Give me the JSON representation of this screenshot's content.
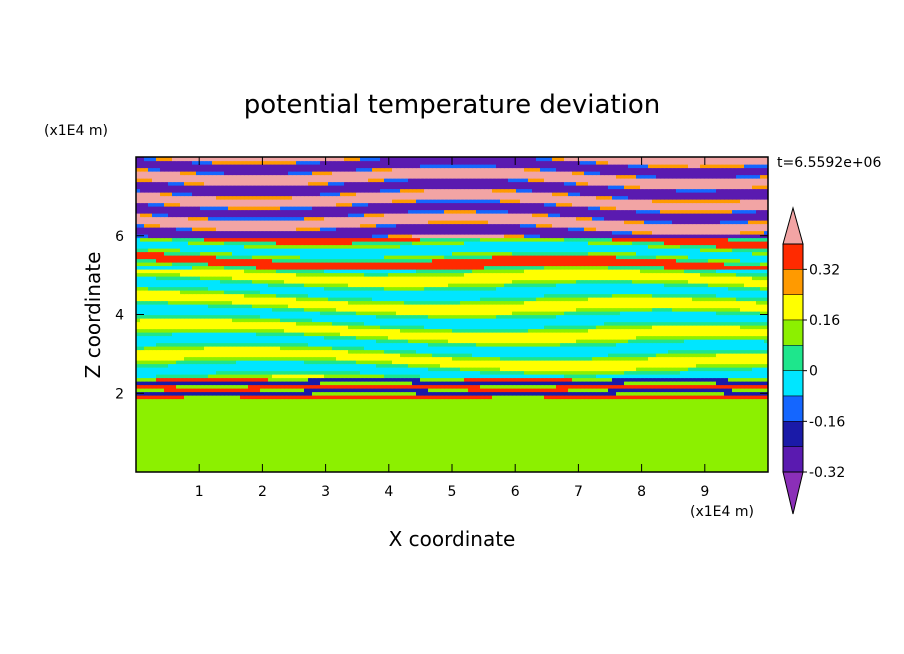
{
  "chart_data": {
    "type": "heatmap",
    "title": "potential temperature deviation",
    "xlabel": "X coordinate",
    "ylabel": "Z coordinate",
    "x_unit": "(x1E4 m)",
    "y_unit": "(x1E4 m)",
    "time_label": "t=6.5592e+06",
    "xlim": [
      0,
      10
    ],
    "ylim": [
      0,
      8
    ],
    "x_ticks": [
      "1",
      "2",
      "3",
      "4",
      "5",
      "6",
      "7",
      "8",
      "9"
    ],
    "y_ticks": [
      "2",
      "4",
      "6"
    ],
    "colorbar": {
      "levels": [
        -0.4,
        -0.32,
        -0.24,
        -0.16,
        -0.08,
        0,
        0.08,
        0.16,
        0.24,
        0.32,
        0.4
      ],
      "labels": [
        "0.32",
        "0.16",
        "0",
        "-0.16",
        "-0.32"
      ],
      "colors": [
        "#8b2fb8",
        "#5a1ab0",
        "#1a1aa8",
        "#1466ff",
        "#00e6ff",
        "#1ee68c",
        "#8cf000",
        "#ffff00",
        "#ff9a00",
        "#ff2a00",
        "#f2a4a4"
      ],
      "extend": "both"
    },
    "bands": [
      {
        "z_range": [
          0,
          1.9
        ],
        "dominant": 0.03,
        "secondary": 0.07,
        "pattern": "blobs"
      },
      {
        "z_range": [
          1.9,
          2.4
        ],
        "dominant": -0.3,
        "secondary": 0.3,
        "pattern": "thin-layers"
      },
      {
        "z_range": [
          2.4,
          5.2
        ],
        "dominant": -0.1,
        "secondary": 0.1,
        "pattern": "layers"
      },
      {
        "z_range": [
          5.2,
          6.0
        ],
        "dominant": 0.3,
        "secondary": -0.1,
        "pattern": "layers"
      },
      {
        "z_range": [
          6.0,
          8.0
        ],
        "dominant": 0.4,
        "secondary": -0.4,
        "pattern": "alternating-layers"
      }
    ],
    "grid": false,
    "legend": "colorbar-right"
  }
}
